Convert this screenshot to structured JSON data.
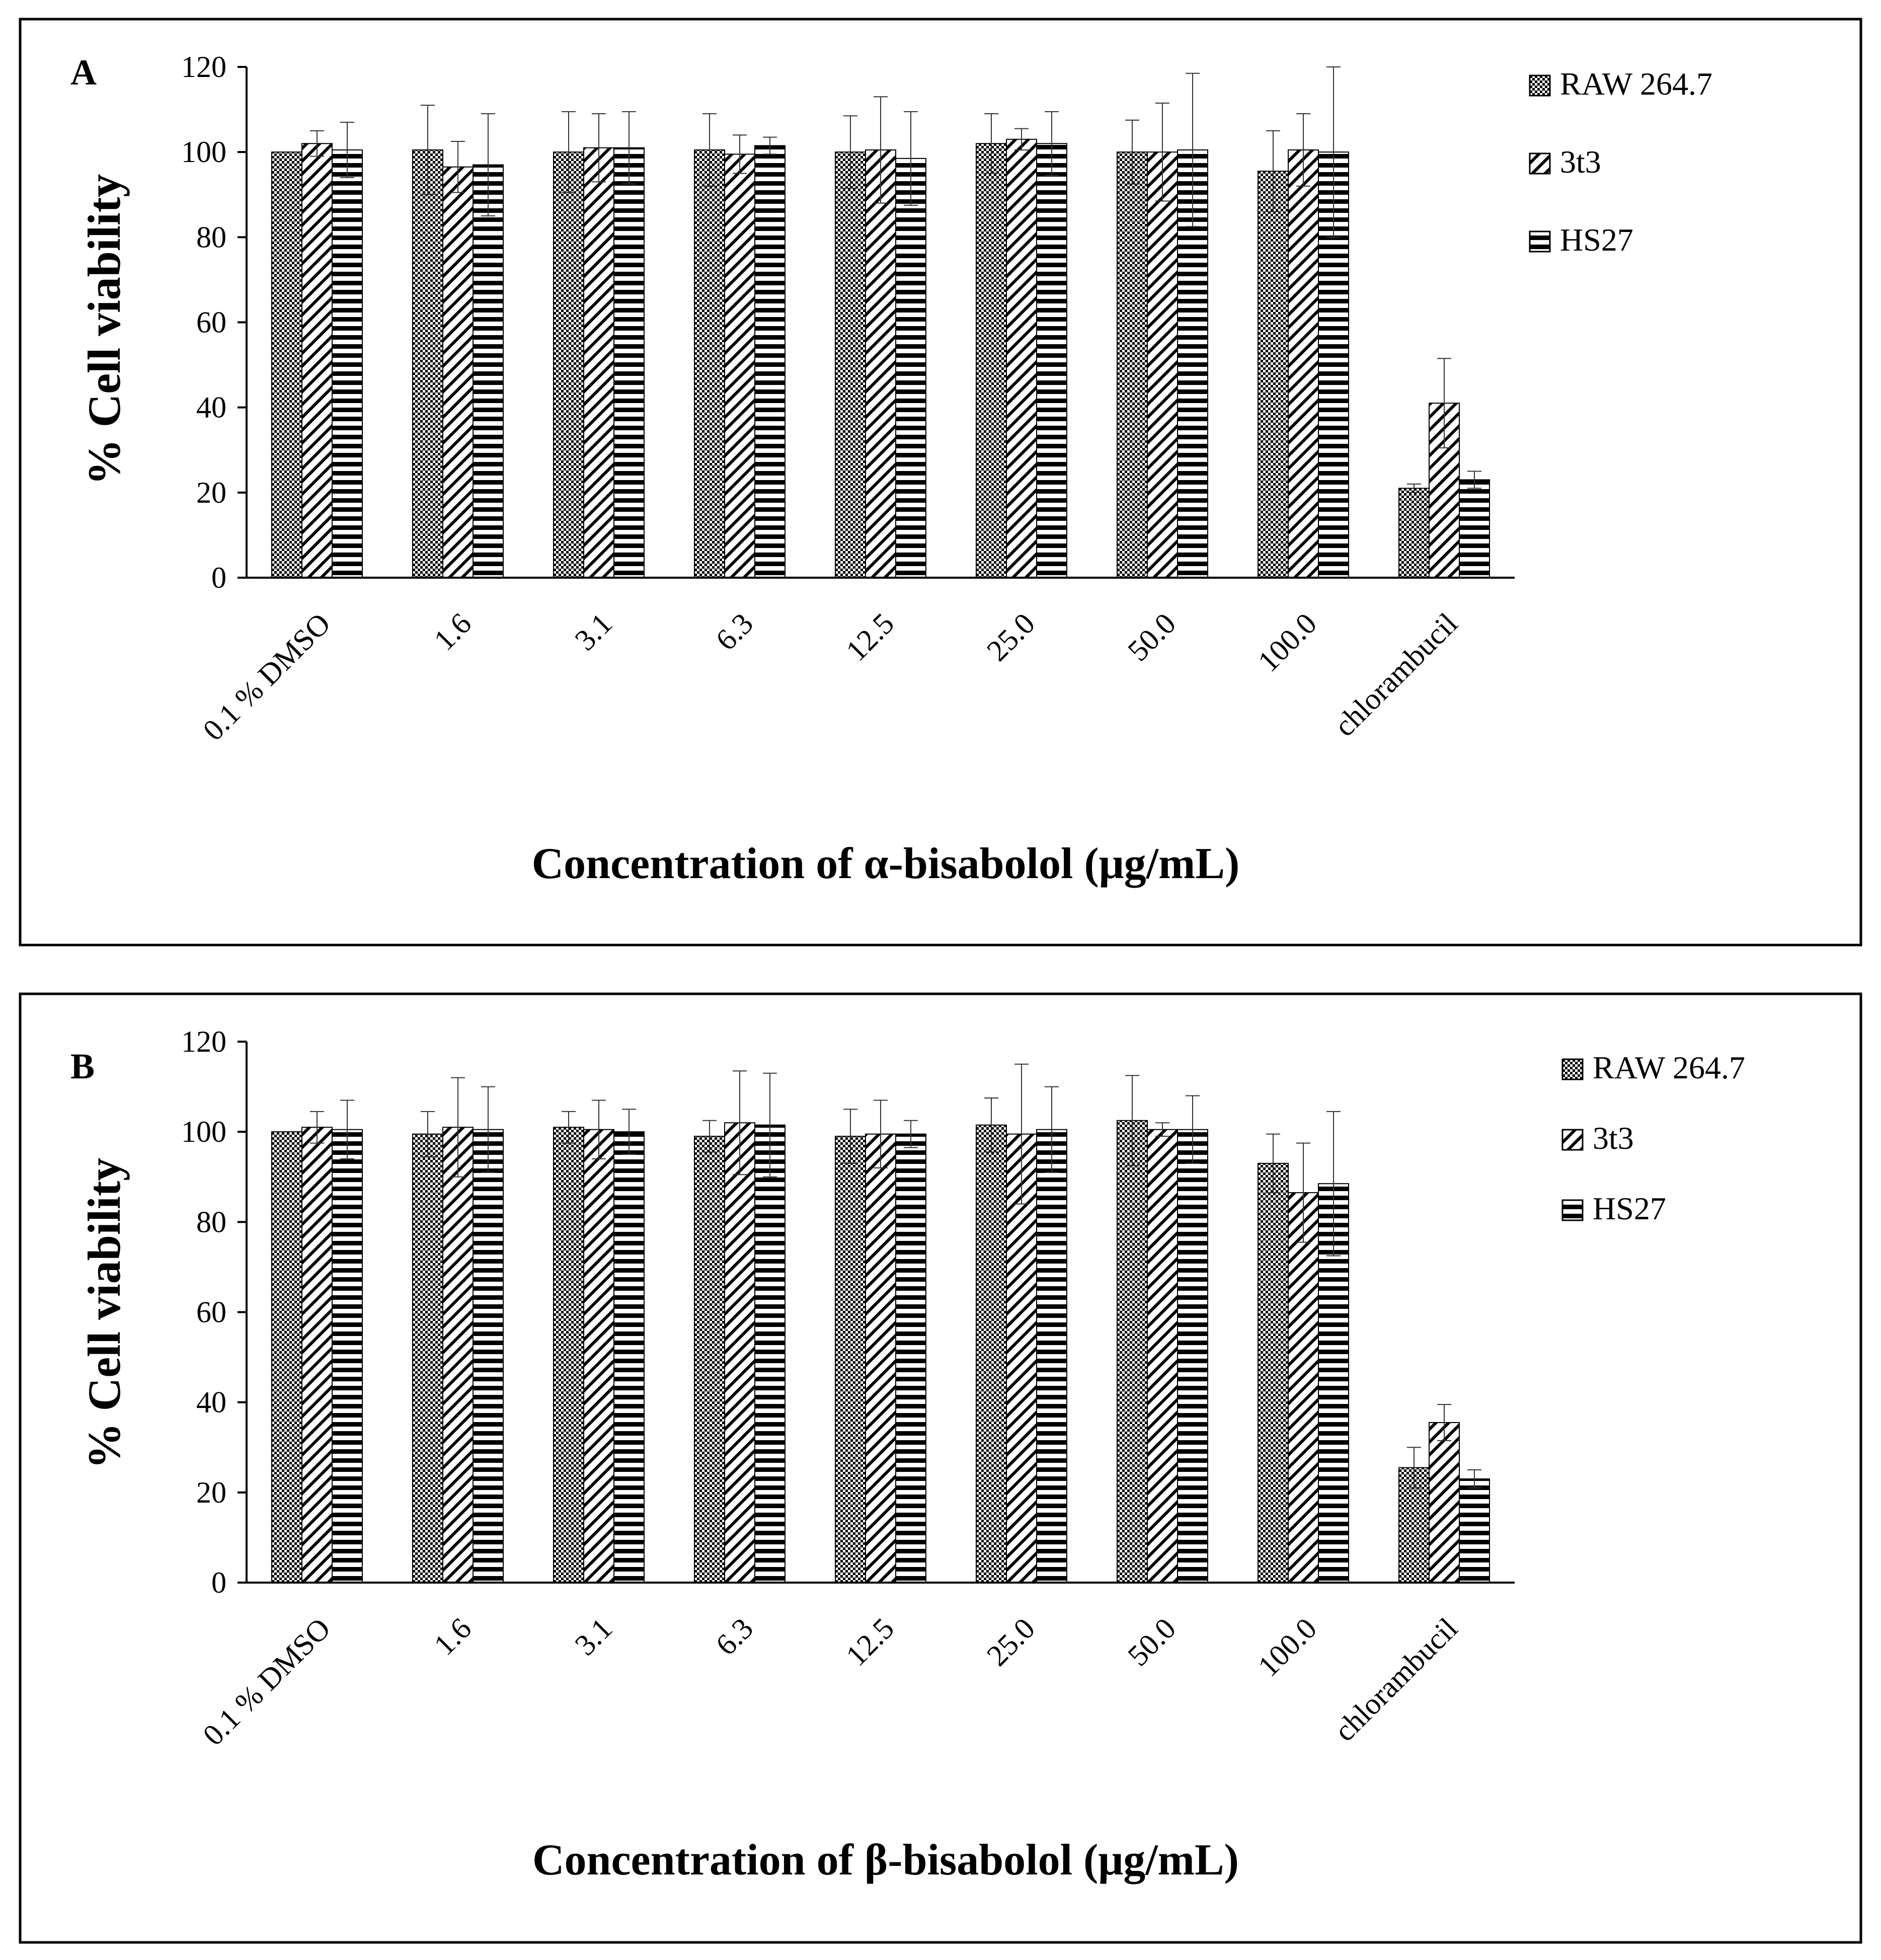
{
  "figure": {
    "pattern_colors": {
      "ink": "#000000",
      "paper": "#ffffff",
      "frame": "#000000"
    }
  },
  "chart_data": [
    {
      "type": "bar",
      "panel_label": "A",
      "xlabel": "Concentration of α-bisabolol (μg/mL)",
      "ylabel": "% Cell viability",
      "ylim": [
        0,
        120
      ],
      "yticks": [
        0,
        20,
        40,
        60,
        80,
        100,
        120
      ],
      "categories": [
        "0.1 % DMSO",
        "1.6",
        "3.1",
        "6.3",
        "12.5",
        "25.0",
        "50.0",
        "100.0",
        "chlorambucil"
      ],
      "legend": {
        "position": "top-right"
      },
      "series": [
        {
          "name": "RAW 264.7",
          "pattern": "dots",
          "values": [
            100,
            100.5,
            100,
            100.5,
            100,
            102,
            100,
            95.5,
            21
          ],
          "errors": [
            0,
            10.5,
            9.5,
            8.5,
            8.5,
            7,
            7.5,
            9.5,
            1
          ]
        },
        {
          "name": "3t3",
          "pattern": "diagonal",
          "values": [
            102,
            96.5,
            101,
            99.5,
            100.5,
            103,
            100,
            100.5,
            41
          ],
          "errors": [
            3,
            6,
            8,
            4.5,
            12.5,
            2.5,
            11.5,
            8.5,
            10.5
          ]
        },
        {
          "name": "HS27",
          "pattern": "horizontal",
          "values": [
            100.5,
            97,
            101,
            101.5,
            98.5,
            102,
            100.5,
            100,
            23
          ],
          "errors": [
            6.5,
            12,
            8.5,
            2,
            11,
            7.5,
            18,
            20,
            2
          ]
        }
      ]
    },
    {
      "type": "bar",
      "panel_label": "B",
      "xlabel": "Concentration of β-bisabolol (μg/mL)",
      "ylabel": "% Cell viability",
      "ylim": [
        0,
        120
      ],
      "yticks": [
        0,
        20,
        40,
        60,
        80,
        100,
        120
      ],
      "categories": [
        "0.1 % DMSO",
        "1.6",
        "3.1",
        "6.3",
        "12.5",
        "25.0",
        "50.0",
        "100.0",
        "chlorambucil"
      ],
      "legend": {
        "position": "top-right"
      },
      "series": [
        {
          "name": "RAW 264.7",
          "pattern": "dots",
          "values": [
            100,
            99.5,
            101,
            99,
            99,
            101.5,
            102.5,
            93,
            25.5
          ],
          "errors": [
            0,
            5,
            3.5,
            3.5,
            6,
            6,
            10,
            6.5,
            4.5
          ]
        },
        {
          "name": "3t3",
          "pattern": "diagonal",
          "values": [
            101,
            101,
            100.5,
            102,
            99.5,
            99.5,
            100.5,
            86.5,
            35.5
          ],
          "errors": [
            3.5,
            11,
            6.5,
            11.5,
            7.5,
            15.5,
            1.5,
            11,
            4
          ]
        },
        {
          "name": "HS27",
          "pattern": "horizontal",
          "values": [
            100.5,
            100.5,
            100,
            101.5,
            99.5,
            100.5,
            100.5,
            88.5,
            23
          ],
          "errors": [
            6.5,
            9.5,
            5,
            11.5,
            3,
            9.5,
            7.5,
            16,
            2
          ]
        }
      ]
    }
  ]
}
